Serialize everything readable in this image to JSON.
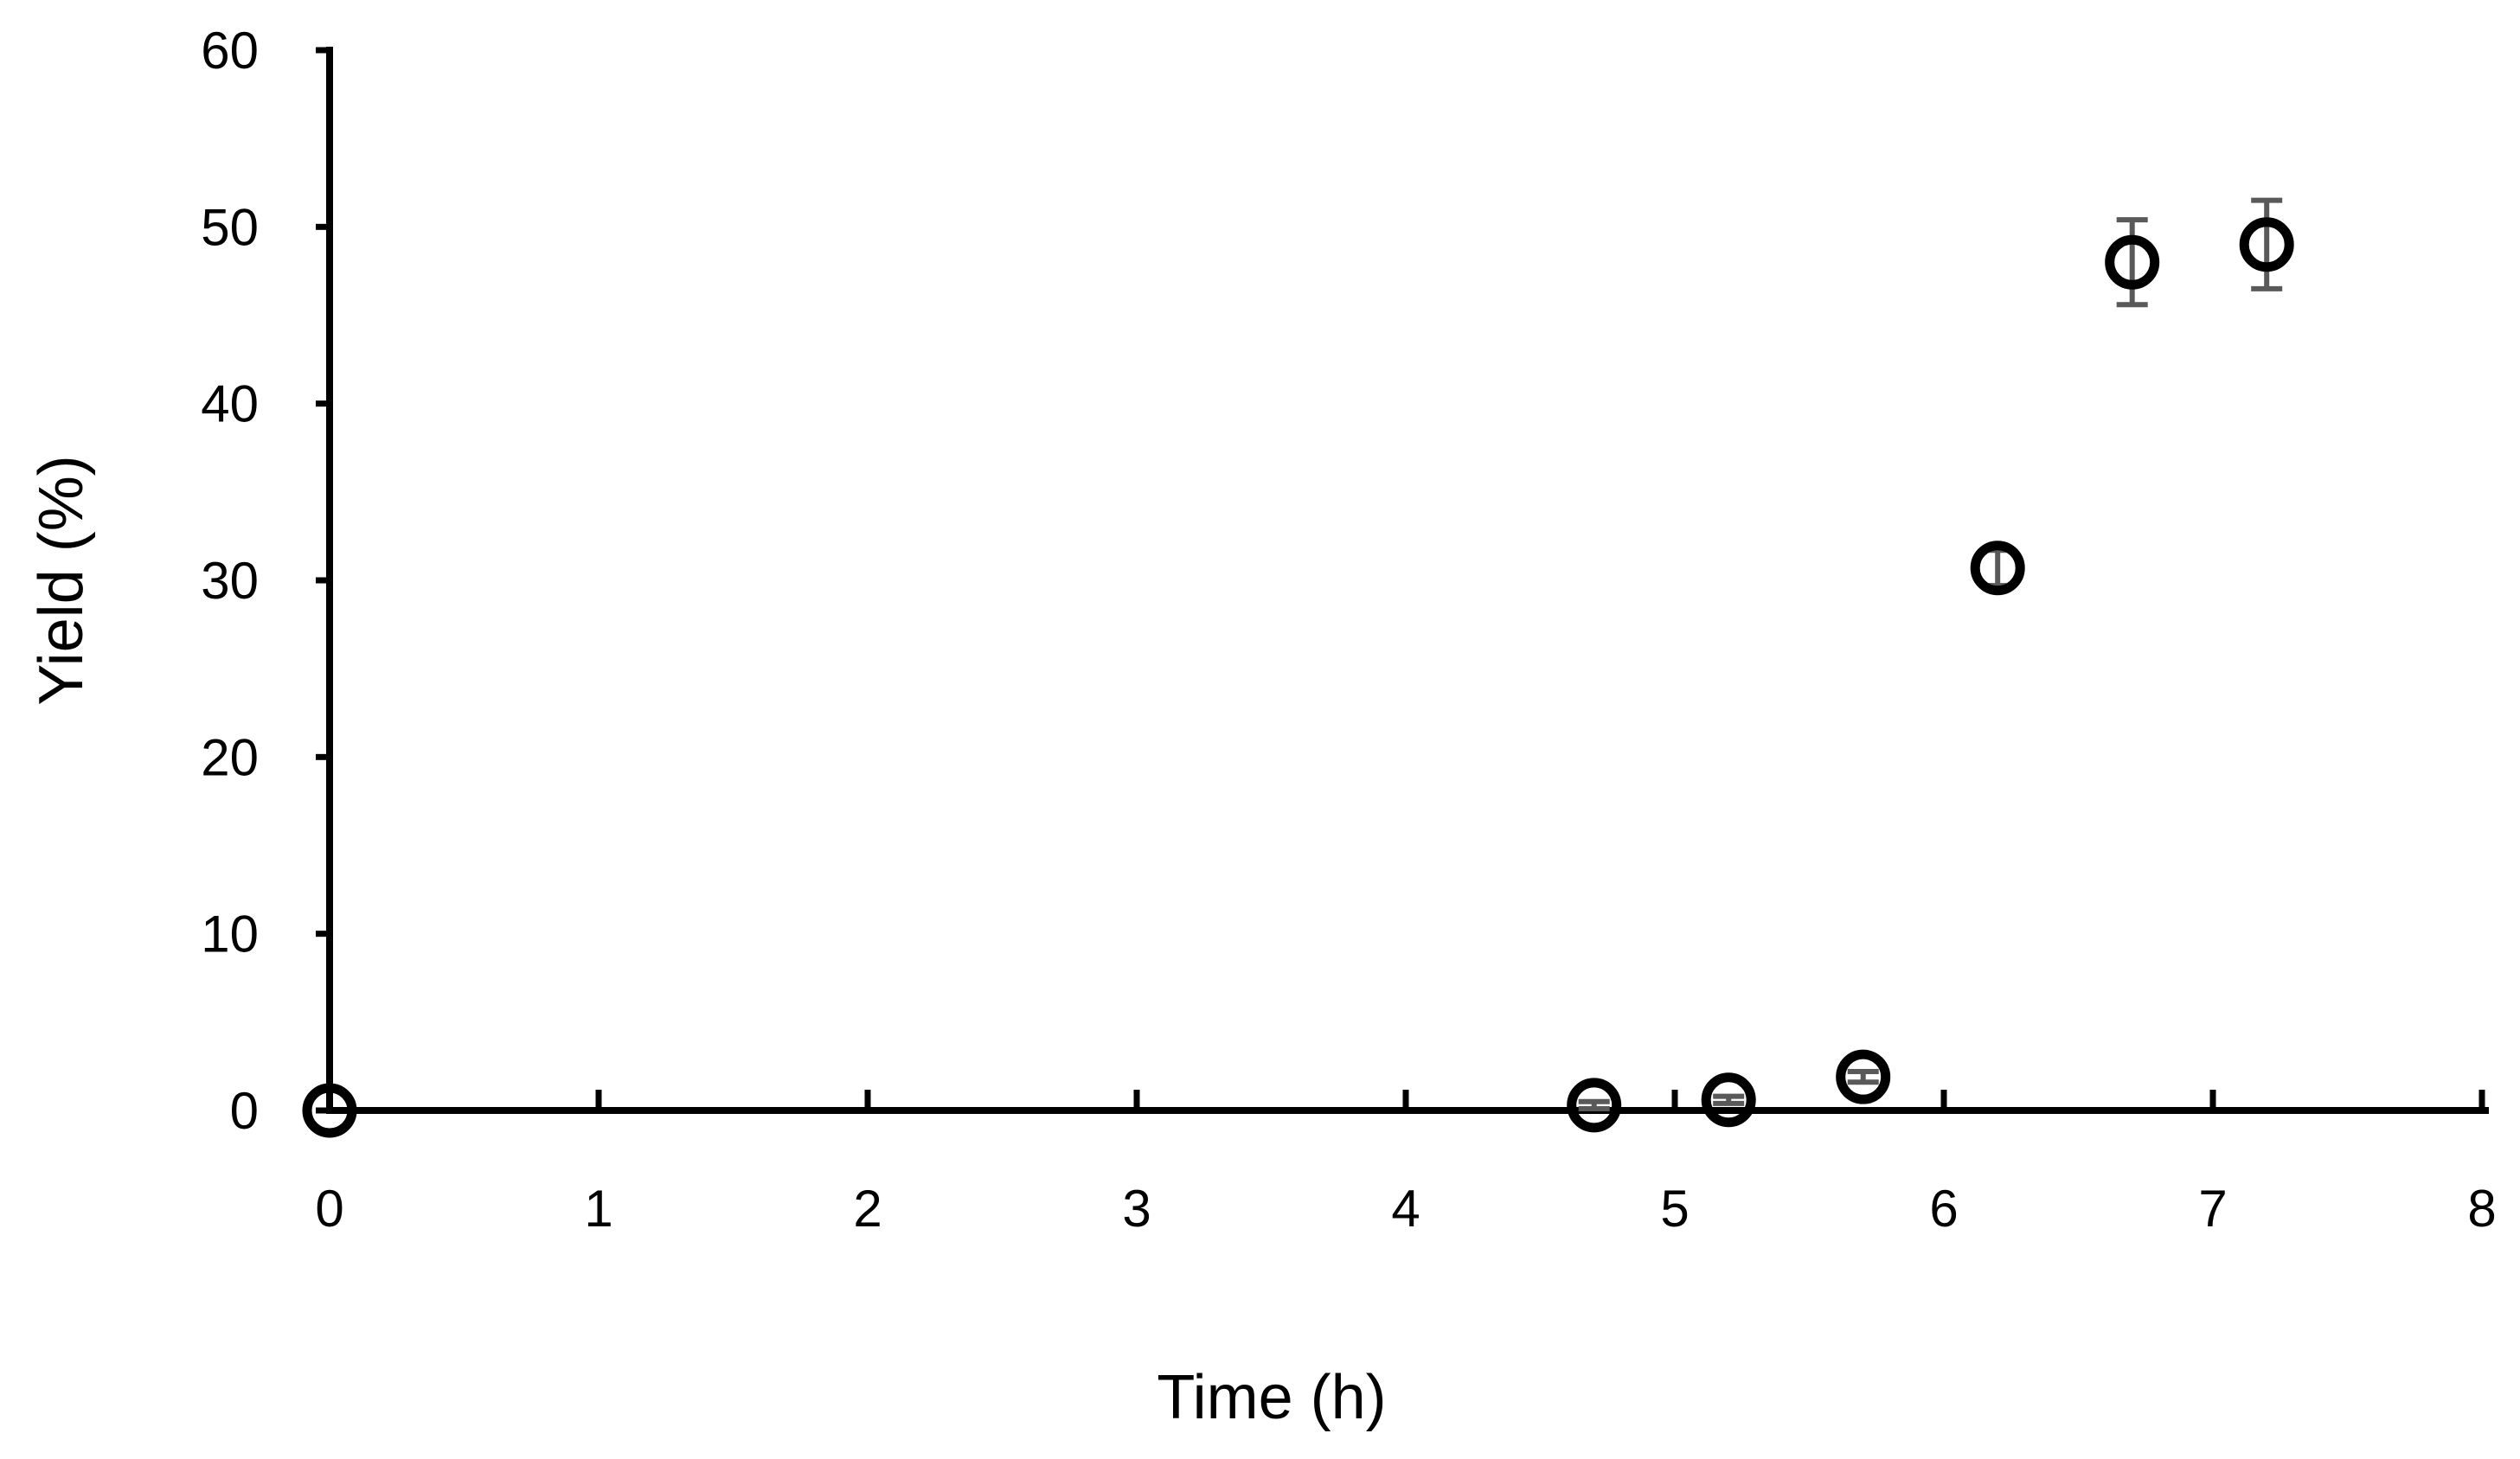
{
  "chart_data": {
    "type": "scatter",
    "title": "",
    "xlabel": "Time (h)",
    "ylabel": "Yield (%)",
    "xlim": [
      0,
      8
    ],
    "ylim": [
      0,
      60
    ],
    "x_ticks": [
      "0",
      "1",
      "2",
      "3",
      "4",
      "5",
      "6",
      "7",
      "8"
    ],
    "y_ticks": [
      "0",
      "10",
      "20",
      "30",
      "40",
      "50",
      "60"
    ],
    "grid": false,
    "legend": "none",
    "marker": "open-circle",
    "marker_color": "#000000",
    "error_bar_color": "#595959",
    "points": [
      {
        "x": 0.0,
        "y": 0.0,
        "err": 0.0
      },
      {
        "x": 4.7,
        "y": 0.3,
        "err": 0.2
      },
      {
        "x": 5.2,
        "y": 0.6,
        "err": 0.2
      },
      {
        "x": 5.7,
        "y": 1.9,
        "err": 0.3
      },
      {
        "x": 6.2,
        "y": 30.7,
        "err": 1.0
      },
      {
        "x": 6.7,
        "y": 48.0,
        "err": 2.4
      },
      {
        "x": 7.2,
        "y": 49.0,
        "err": 2.5
      }
    ]
  }
}
